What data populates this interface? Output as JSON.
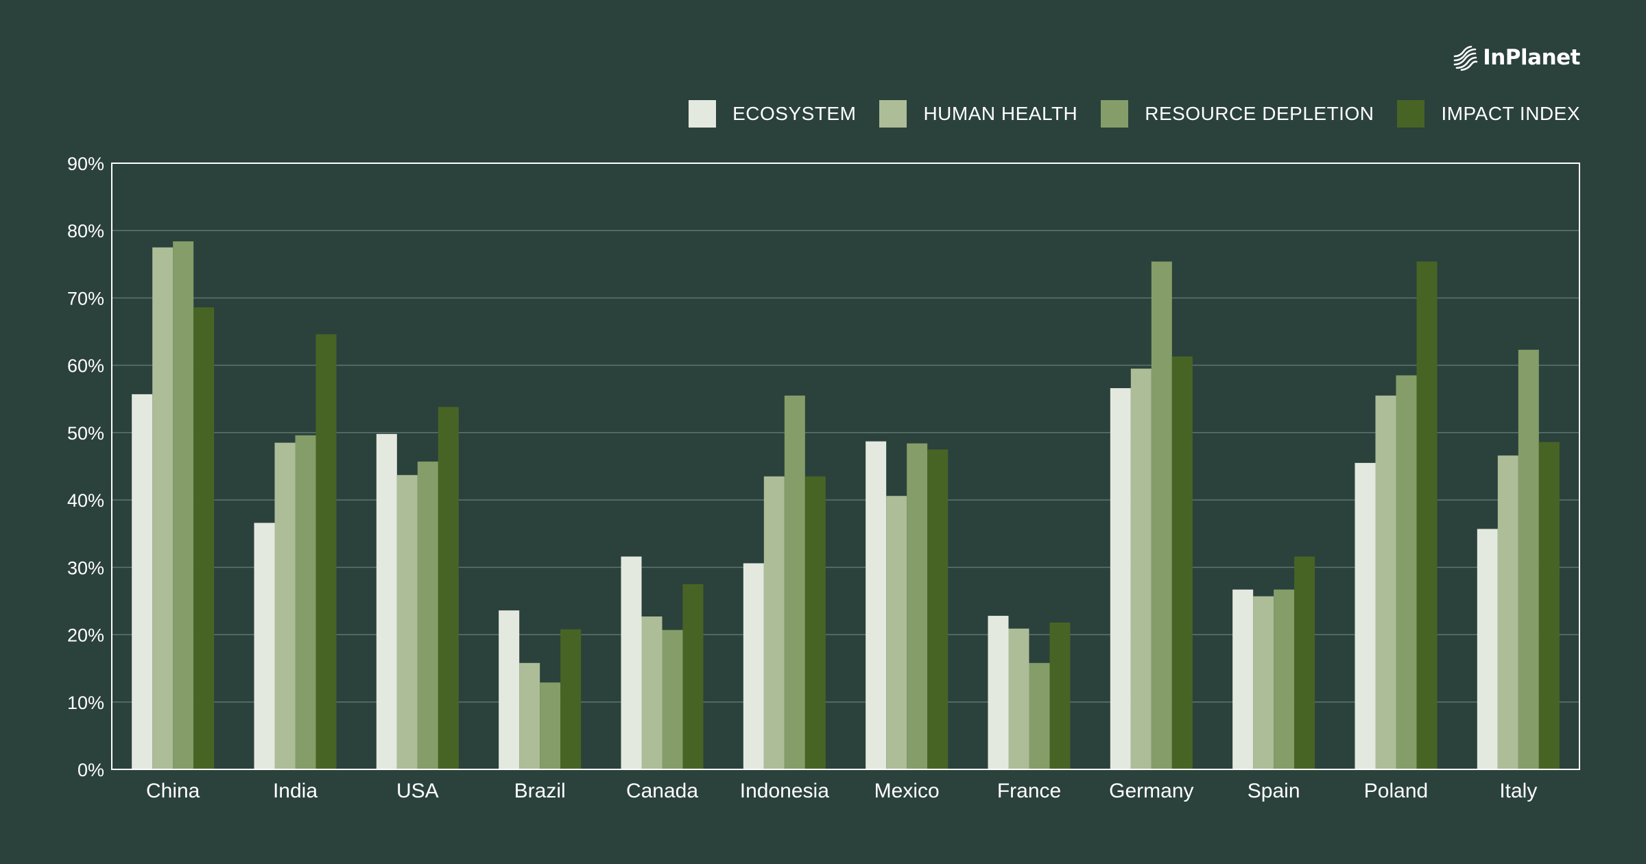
{
  "brand": {
    "name": "InPlanet",
    "icon": "inplanet-logo-icon"
  },
  "theme": {
    "background": "#2b413c",
    "axis_color": "#ffffff",
    "grid_color": "#5e7570",
    "text_color": "#ffffff"
  },
  "chart_data": {
    "type": "bar",
    "title": "",
    "xlabel": "",
    "ylabel": "",
    "ylim": [
      0,
      90
    ],
    "yticks": [
      "0%",
      "10%",
      "20%",
      "30%",
      "40%",
      "50%",
      "60%",
      "70%",
      "80%",
      "90%"
    ],
    "y_unit": "%",
    "grid": true,
    "legend_position": "top-right",
    "categories": [
      "China",
      "India",
      "USA",
      "Brazil",
      "Canada",
      "Indonesia",
      "Mexico",
      "France",
      "Germany",
      "Spain",
      "Poland",
      "Italy"
    ],
    "series": [
      {
        "name": "ECOSYSTEM",
        "color": "#e4e9e0",
        "values": [
          55.7,
          36.6,
          49.8,
          23.6,
          31.6,
          30.6,
          48.7,
          22.8,
          56.6,
          26.7,
          45.5,
          35.7
        ]
      },
      {
        "name": "HUMAN HEALTH",
        "color": "#adbd98",
        "values": [
          77.5,
          48.5,
          43.7,
          15.8,
          22.7,
          43.5,
          40.6,
          20.9,
          59.5,
          25.7,
          55.5,
          46.6
        ]
      },
      {
        "name": "RESOURCE DEPLETION",
        "color": "#859d68",
        "values": [
          78.4,
          49.6,
          45.7,
          12.9,
          20.7,
          55.5,
          48.4,
          15.8,
          75.4,
          26.7,
          58.5,
          62.3
        ]
      },
      {
        "name": "IMPACT INDEX",
        "color": "#486424",
        "values": [
          68.6,
          64.6,
          53.8,
          20.8,
          27.5,
          43.5,
          47.5,
          21.8,
          61.3,
          31.6,
          75.4,
          48.6
        ]
      }
    ]
  }
}
